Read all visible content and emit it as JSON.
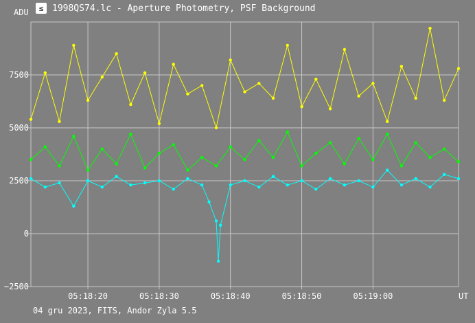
{
  "window": {
    "title": "1998QS74.lc - Aperture Photometry, PSF Background",
    "icon": "photometry-app-icon"
  },
  "footer": {
    "text": "04 gru 2023, FITS, Andor Zyla 5.5"
  },
  "colors": {
    "background": "#808080",
    "grid": "#c8c8c8",
    "text": "#ffffff",
    "series_yellow": "#ffff00",
    "series_green": "#00ff00",
    "series_cyan": "#00ffff"
  },
  "chart_data": {
    "type": "scatter",
    "title": "1998QS74.lc - Aperture Photometry, PSF Background",
    "ylabel": "ADU",
    "xlabel": "UT",
    "grid": true,
    "ylim": [
      -2500,
      10000
    ],
    "xlim": [
      "05:18:12",
      "05:19:12"
    ],
    "y_ticks": [
      -2500,
      0,
      2500,
      5000,
      7500
    ],
    "y_tick_labels": [
      "−2500",
      "0",
      "2500",
      "5000",
      "7500"
    ],
    "x_ticks": [
      "05:18:20",
      "05:18:30",
      "05:18:40",
      "05:18:50",
      "05:19:00"
    ],
    "series": [
      {
        "color": "#ffff00",
        "points": [
          [
            "05:18:12.0",
            5400
          ],
          [
            "05:18:14.0",
            7600
          ],
          [
            "05:18:16.0",
            5300
          ],
          [
            "05:18:18.0",
            8900
          ],
          [
            "05:18:20.0",
            6300
          ],
          [
            "05:18:22.0",
            7400
          ],
          [
            "05:18:24.0",
            8500
          ],
          [
            "05:18:26.0",
            6100
          ],
          [
            "05:18:28.0",
            7600
          ],
          [
            "05:18:30.0",
            5200
          ],
          [
            "05:18:32.0",
            8000
          ],
          [
            "05:18:34.0",
            6600
          ],
          [
            "05:18:36.0",
            7000
          ],
          [
            "05:18:38.0",
            5000
          ],
          [
            "05:18:40.0",
            8200
          ],
          [
            "05:18:42.0",
            6700
          ],
          [
            "05:18:44.0",
            7100
          ],
          [
            "05:18:46.0",
            6400
          ],
          [
            "05:18:48.0",
            8900
          ],
          [
            "05:18:50.0",
            6000
          ],
          [
            "05:18:52.0",
            7300
          ],
          [
            "05:18:54.0",
            5900
          ],
          [
            "05:18:56.0",
            8700
          ],
          [
            "05:18:58.0",
            6500
          ],
          [
            "05:19:00.0",
            7100
          ],
          [
            "05:19:02.0",
            5300
          ],
          [
            "05:19:04.0",
            7900
          ],
          [
            "05:19:06.0",
            6400
          ],
          [
            "05:19:08.0",
            9700
          ],
          [
            "05:19:10.0",
            6300
          ],
          [
            "05:19:12.0",
            7800
          ]
        ]
      },
      {
        "color": "#00ff00",
        "points": [
          [
            "05:18:12.0",
            3500
          ],
          [
            "05:18:14.0",
            4100
          ],
          [
            "05:18:16.0",
            3200
          ],
          [
            "05:18:18.0",
            4600
          ],
          [
            "05:18:20.0",
            3000
          ],
          [
            "05:18:22.0",
            4000
          ],
          [
            "05:18:24.0",
            3300
          ],
          [
            "05:18:26.0",
            4700
          ],
          [
            "05:18:28.0",
            3100
          ],
          [
            "05:18:30.0",
            3800
          ],
          [
            "05:18:32.0",
            4200
          ],
          [
            "05:18:34.0",
            3000
          ],
          [
            "05:18:36.0",
            3600
          ],
          [
            "05:18:38.0",
            3200
          ],
          [
            "05:18:40.0",
            4100
          ],
          [
            "05:18:42.0",
            3500
          ],
          [
            "05:18:44.0",
            4400
          ],
          [
            "05:18:46.0",
            3600
          ],
          [
            "05:18:48.0",
            4800
          ],
          [
            "05:18:50.0",
            3200
          ],
          [
            "05:18:52.0",
            3800
          ],
          [
            "05:18:54.0",
            4300
          ],
          [
            "05:18:56.0",
            3300
          ],
          [
            "05:18:58.0",
            4500
          ],
          [
            "05:19:00.0",
            3500
          ],
          [
            "05:19:02.0",
            4700
          ],
          [
            "05:19:04.0",
            3200
          ],
          [
            "05:19:06.0",
            4300
          ],
          [
            "05:19:08.0",
            3600
          ],
          [
            "05:19:10.0",
            4000
          ],
          [
            "05:19:12.0",
            3400
          ]
        ]
      },
      {
        "color": "#00ffff",
        "points": [
          [
            "05:18:12.0",
            2600
          ],
          [
            "05:18:14.0",
            2200
          ],
          [
            "05:18:16.0",
            2400
          ],
          [
            "05:18:18.0",
            1300
          ],
          [
            "05:18:20.0",
            2500
          ],
          [
            "05:18:22.0",
            2200
          ],
          [
            "05:18:24.0",
            2700
          ],
          [
            "05:18:26.0",
            2300
          ],
          [
            "05:18:28.0",
            2400
          ],
          [
            "05:18:30.0",
            2500
          ],
          [
            "05:18:32.0",
            2100
          ],
          [
            "05:18:34.0",
            2600
          ],
          [
            "05:18:36.0",
            2300
          ],
          [
            "05:18:37.0",
            1500
          ],
          [
            "05:18:38.0",
            600
          ],
          [
            "05:18:38.3",
            -1300
          ],
          [
            "05:18:38.6",
            400
          ],
          [
            "05:18:40.0",
            2300
          ],
          [
            "05:18:42.0",
            2500
          ],
          [
            "05:18:44.0",
            2200
          ],
          [
            "05:18:46.0",
            2700
          ],
          [
            "05:18:48.0",
            2300
          ],
          [
            "05:18:50.0",
            2500
          ],
          [
            "05:18:52.0",
            2100
          ],
          [
            "05:18:54.0",
            2600
          ],
          [
            "05:18:56.0",
            2300
          ],
          [
            "05:18:58.0",
            2500
          ],
          [
            "05:19:00.0",
            2200
          ],
          [
            "05:19:02.0",
            3000
          ],
          [
            "05:19:04.0",
            2300
          ],
          [
            "05:19:06.0",
            2600
          ],
          [
            "05:19:08.0",
            2200
          ],
          [
            "05:19:10.0",
            2800
          ],
          [
            "05:19:12.0",
            2600
          ]
        ]
      }
    ]
  }
}
